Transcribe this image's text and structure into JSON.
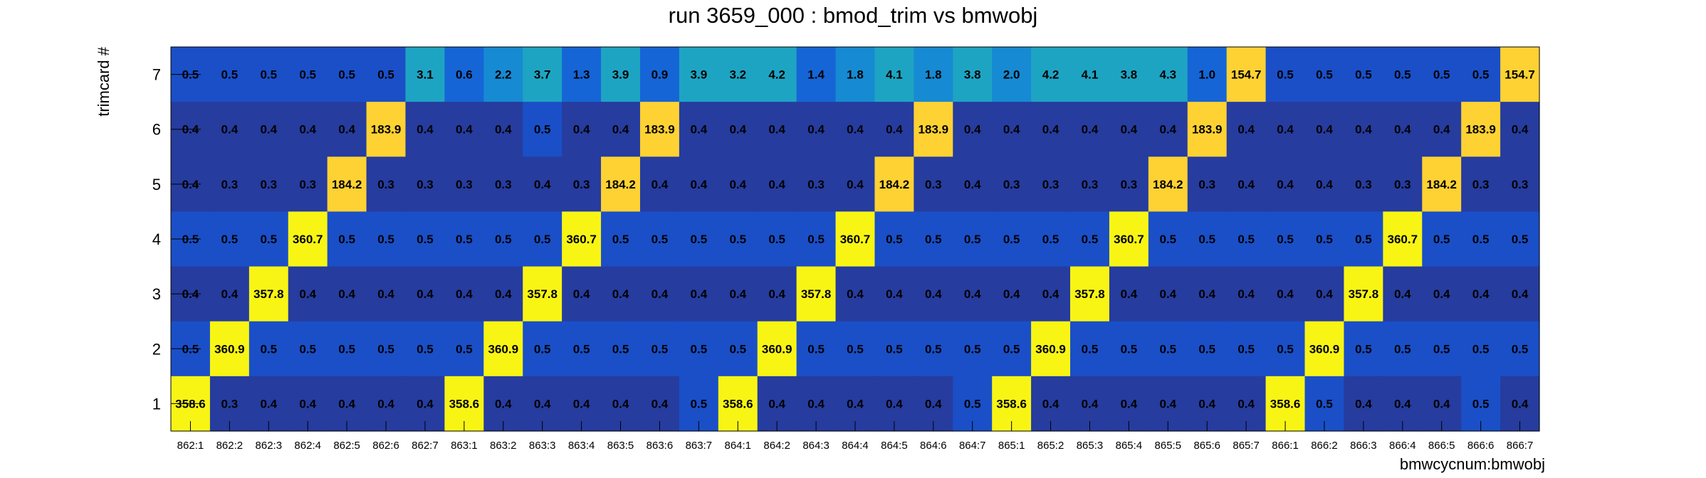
{
  "chart_data": {
    "type": "heatmap",
    "title": "run 3659_000 : bmod_trim vs bmwobj",
    "xlabel": "bmwcycnum:bmwobj",
    "ylabel": "trimcard #",
    "x_categories": [
      "862:1",
      "862:2",
      "862:3",
      "862:4",
      "862:5",
      "862:6",
      "862:7",
      "863:1",
      "863:2",
      "863:3",
      "863:4",
      "863:5",
      "863:6",
      "863:7",
      "864:1",
      "864:2",
      "864:3",
      "864:4",
      "864:5",
      "864:6",
      "864:7",
      "865:1",
      "865:2",
      "865:3",
      "865:4",
      "865:5",
      "865:6",
      "865:7",
      "866:1",
      "866:2",
      "866:3",
      "866:4",
      "866:5",
      "866:6",
      "866:7"
    ],
    "y_categories": [
      "1",
      "2",
      "3",
      "4",
      "5",
      "6",
      "7"
    ],
    "colors": {
      "low": "#263c9e",
      "base": "#1a4fc8",
      "mid1": "#1565d6",
      "mid2": "#168ad2",
      "mid3": "#1ea4c3",
      "high": "#ffd233",
      "max": "#f8f515"
    },
    "rows": [
      {
        "y": "7",
        "values": [
          "0.5",
          "0.5",
          "0.5",
          "0.5",
          "0.5",
          "0.5",
          "3.1",
          "0.6",
          "2.2",
          "3.7",
          "1.3",
          "3.9",
          "0.9",
          "3.9",
          "3.2",
          "4.2",
          "1.4",
          "1.8",
          "4.1",
          "1.8",
          "3.8",
          "2.0",
          "4.2",
          "4.1",
          "3.8",
          "4.3",
          "1.0",
          "154.7",
          "0.5",
          "0.5",
          "0.5",
          "0.5",
          "0.5",
          "0.5",
          "154.7"
        ]
      },
      {
        "y": "6",
        "values": [
          "0.4",
          "0.4",
          "0.4",
          "0.4",
          "0.4",
          "183.9",
          "0.4",
          "0.4",
          "0.4",
          "0.5",
          "0.4",
          "0.4",
          "183.9",
          "0.4",
          "0.4",
          "0.4",
          "0.4",
          "0.4",
          "0.4",
          "183.9",
          "0.4",
          "0.4",
          "0.4",
          "0.4",
          "0.4",
          "0.4",
          "183.9",
          "0.4",
          "0.4",
          "0.4",
          "0.4",
          "0.4",
          "0.4",
          "183.9",
          "0.4"
        ]
      },
      {
        "y": "5",
        "values": [
          "0.4",
          "0.3",
          "0.3",
          "0.3",
          "184.2",
          "0.3",
          "0.3",
          "0.3",
          "0.3",
          "0.4",
          "0.3",
          "184.2",
          "0.4",
          "0.4",
          "0.4",
          "0.4",
          "0.3",
          "0.4",
          "184.2",
          "0.3",
          "0.4",
          "0.3",
          "0.3",
          "0.3",
          "0.3",
          "184.2",
          "0.3",
          "0.4",
          "0.4",
          "0.4",
          "0.3",
          "0.3",
          "184.2",
          "0.3",
          "0.3"
        ]
      },
      {
        "y": "4",
        "values": [
          "0.5",
          "0.5",
          "0.5",
          "360.7",
          "0.5",
          "0.5",
          "0.5",
          "0.5",
          "0.5",
          "0.5",
          "360.7",
          "0.5",
          "0.5",
          "0.5",
          "0.5",
          "0.5",
          "0.5",
          "360.7",
          "0.5",
          "0.5",
          "0.5",
          "0.5",
          "0.5",
          "0.5",
          "360.7",
          "0.5",
          "0.5",
          "0.5",
          "0.5",
          "0.5",
          "0.5",
          "360.7",
          "0.5",
          "0.5",
          "0.5"
        ]
      },
      {
        "y": "3",
        "values": [
          "0.4",
          "0.4",
          "357.8",
          "0.4",
          "0.4",
          "0.4",
          "0.4",
          "0.4",
          "0.4",
          "357.8",
          "0.4",
          "0.4",
          "0.4",
          "0.4",
          "0.4",
          "0.4",
          "357.8",
          "0.4",
          "0.4",
          "0.4",
          "0.4",
          "0.4",
          "0.4",
          "357.8",
          "0.4",
          "0.4",
          "0.4",
          "0.4",
          "0.4",
          "0.4",
          "357.8",
          "0.4",
          "0.4",
          "0.4",
          "0.4"
        ]
      },
      {
        "y": "2",
        "values": [
          "0.5",
          "360.9",
          "0.5",
          "0.5",
          "0.5",
          "0.5",
          "0.5",
          "0.5",
          "360.9",
          "0.5",
          "0.5",
          "0.5",
          "0.5",
          "0.5",
          "0.5",
          "360.9",
          "0.5",
          "0.5",
          "0.5",
          "0.5",
          "0.5",
          "0.5",
          "360.9",
          "0.5",
          "0.5",
          "0.5",
          "0.5",
          "0.5",
          "0.5",
          "360.9",
          "0.5",
          "0.5",
          "0.5",
          "0.5",
          "0.5"
        ]
      },
      {
        "y": "1",
        "values": [
          "358.6",
          "0.3",
          "0.4",
          "0.4",
          "0.4",
          "0.4",
          "0.4",
          "358.6",
          "0.4",
          "0.4",
          "0.4",
          "0.4",
          "0.4",
          "0.5",
          "358.6",
          "0.4",
          "0.4",
          "0.4",
          "0.4",
          "0.4",
          "0.5",
          "358.6",
          "0.4",
          "0.4",
          "0.4",
          "0.4",
          "0.4",
          "0.4",
          "358.6",
          "0.5",
          "0.4",
          "0.4",
          "0.4",
          "0.5",
          "0.4"
        ]
      }
    ],
    "grid": false,
    "legend": "none"
  }
}
